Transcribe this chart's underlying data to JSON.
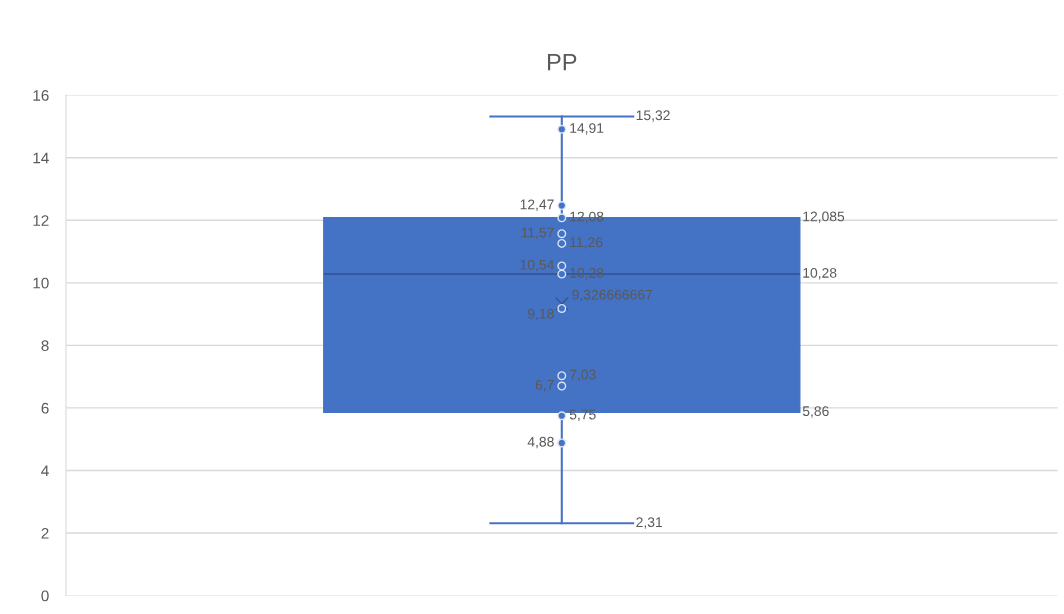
{
  "chart_data": {
    "type": "box",
    "title": "PP",
    "categories": [
      null
    ],
    "color": "#4472c4",
    "boxes": [
      {
        "low": 2.31,
        "q1": 5.86,
        "median": 10.28,
        "q3": 12.085,
        "high": 15.32,
        "mean": 9.326666667
      }
    ],
    "annotations": [
      "2,31",
      "5,86",
      "10,28",
      "12,085",
      "15,32",
      "9,326666667"
    ],
    "series": [
      {
        "type": "scatter",
        "color": "#4472c4",
        "x": [
          null,
          null,
          null,
          null,
          null,
          null,
          null,
          null,
          null,
          null,
          null,
          null
        ],
        "values": [
          14.91,
          12.47,
          12.08,
          11.57,
          11.26,
          10.54,
          10.28,
          9.18,
          7.03,
          6.7,
          5.75,
          4.88
        ],
        "value_labels": [
          "14,91",
          "12,47",
          "12,08",
          "11,57",
          "11,26",
          "10,54",
          "10,28",
          "9,18",
          "7,03",
          "6,7",
          "5,75",
          "4,88"
        ]
      }
    ],
    "ylim": [
      0,
      16
    ],
    "yticks": [
      0,
      2,
      4,
      6,
      8,
      10,
      12,
      14,
      16
    ],
    "grid": "y",
    "tick_labels": "y",
    "marker": "circle"
  }
}
